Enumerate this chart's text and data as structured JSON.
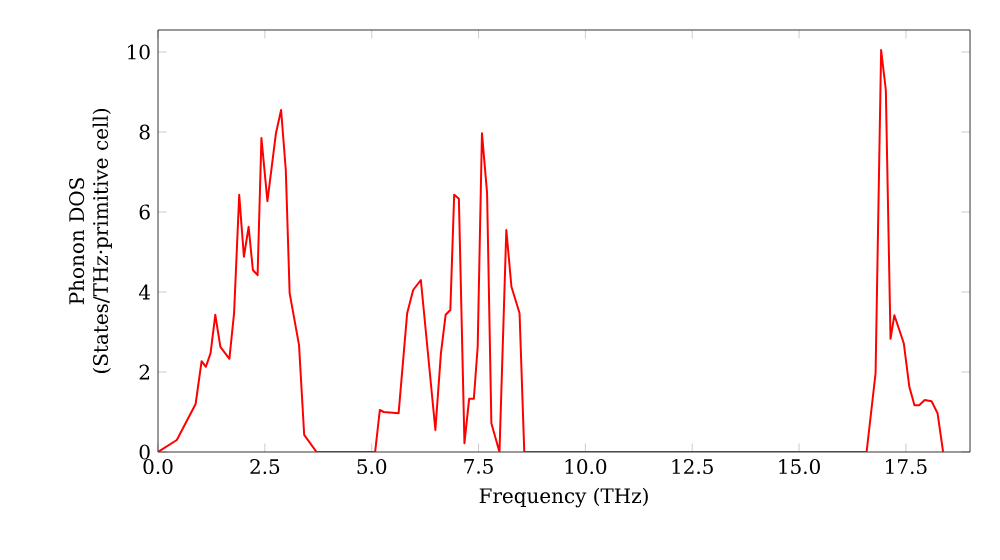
{
  "chart_data": {
    "type": "line",
    "xlabel": "Frequency (THz)",
    "ylabel": "Phonon DOS (States/THz·primitive cell)",
    "x": [
      0,
      0.44,
      0.88,
      1.02,
      1.12,
      1.23,
      1.34,
      1.46,
      1.67,
      1.78,
      1.9,
      2.01,
      2.12,
      2.22,
      2.33,
      2.42,
      2.56,
      2.76,
      2.88,
      2.99,
      3.08,
      3.3,
      3.42,
      3.71,
      5.08,
      5.19,
      5.28,
      5.63,
      5.83,
      5.97,
      6.15,
      6.49,
      6.62,
      6.73,
      6.84,
      6.93,
      7.04,
      7.17,
      7.28,
      7.39,
      7.48,
      7.58,
      7.7,
      7.8,
      7.99,
      8.15,
      8.27,
      8.46,
      8.57,
      16.58,
      16.79,
      16.92,
      17.03,
      17.14,
      17.23,
      17.45,
      17.58,
      17.7,
      17.81,
      17.94,
      18.1,
      18.24,
      18.37
    ],
    "series": [
      {
        "color": "#ff0000",
        "values": [
          0,
          0.3,
          1.2,
          2.27,
          2.13,
          2.47,
          3.43,
          2.63,
          2.33,
          3.47,
          6.43,
          4.88,
          5.63,
          4.55,
          4.42,
          7.85,
          6.27,
          7.97,
          8.55,
          7.05,
          3.97,
          2.67,
          0.43,
          0,
          0,
          1.05,
          1.0,
          0.97,
          3.47,
          4.05,
          4.3,
          0.55,
          2.47,
          3.43,
          3.55,
          6.43,
          6.33,
          0.22,
          1.33,
          1.33,
          2.63,
          7.97,
          6.47,
          0.72,
          0,
          5.55,
          4.13,
          3.47,
          0,
          0,
          1.97,
          10.05,
          9.05,
          2.83,
          3.42,
          2.72,
          1.63,
          1.17,
          1.17,
          1.3,
          1.27,
          0.97,
          0
        ]
      }
    ],
    "xlim": [
      0,
      19
    ],
    "ylim": [
      0,
      10.55
    ],
    "xticks": [
      {
        "value": 0,
        "label": "0.0"
      },
      {
        "value": 2.5,
        "label": "2.5"
      },
      {
        "value": 5,
        "label": "5.0"
      },
      {
        "value": 7.5,
        "label": "7.5"
      },
      {
        "value": 10,
        "label": "10.0"
      },
      {
        "value": 12.5,
        "label": "12.5"
      },
      {
        "value": 15,
        "label": "15.0"
      },
      {
        "value": 17.5,
        "label": "17.5"
      }
    ],
    "yticks": [
      0,
      2,
      4,
      6,
      8,
      10
    ],
    "grid": false,
    "marker": "none",
    "line_style": "solid"
  }
}
